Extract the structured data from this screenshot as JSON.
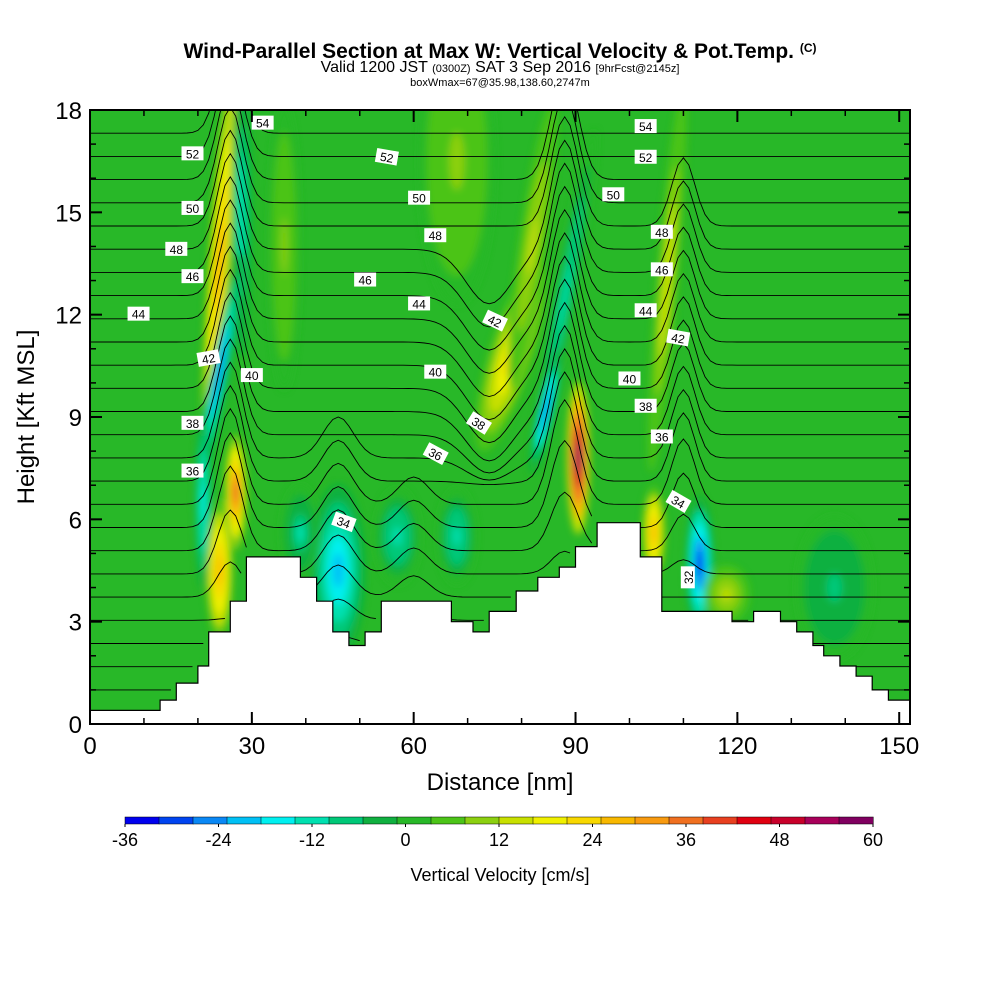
{
  "chart_data": {
    "type": "heatmap",
    "title": "Wind-Parallel Section at Max W: Vertical Velocity & Pot.Temp.",
    "title_mark": "(C)",
    "subtitle_main": "Valid 1200 JST",
    "subtitle_z": "(0300Z)",
    "subtitle_date": "SAT 3 Sep 2016",
    "subtitle_fcst": "[9hrFcst@2145z]",
    "subtitle2": "boxWmax=67@35.98,138.60,2747m",
    "xlabel": "Distance [nm]",
    "ylabel": "Height [Kft MSL]",
    "xlim": [
      0,
      152
    ],
    "ylim": [
      0,
      18
    ],
    "x_ticks": [
      "0",
      "30",
      "60",
      "90",
      "120",
      "150"
    ],
    "y_ticks": [
      "0",
      "3",
      "6",
      "9",
      "12",
      "15",
      "18"
    ],
    "colorbar_label": "Vertical Velocity [cm/s]",
    "colorbar_ticks": [
      "-36",
      "-24",
      "-12",
      "0",
      "12",
      "24",
      "36",
      "48",
      "60"
    ],
    "colorbar_range": [
      -36,
      60
    ],
    "colorbar_colors": [
      "#0000ee",
      "#0044f0",
      "#0a88f5",
      "#00c0f5",
      "#00f0f0",
      "#00e0b0",
      "#00c878",
      "#10b040",
      "#28b828",
      "#4cc418",
      "#8cd010",
      "#c8e000",
      "#f0f000",
      "#f8d800",
      "#f8b800",
      "#f89a10",
      "#f07020",
      "#e84020",
      "#e00010",
      "#c8002a",
      "#a8005a",
      "#800060"
    ],
    "terrain_ft": [
      [
        0,
        400
      ],
      [
        13,
        400
      ],
      [
        13,
        700
      ],
      [
        16,
        700
      ],
      [
        16,
        1200
      ],
      [
        20,
        1200
      ],
      [
        20,
        1700
      ],
      [
        22,
        1700
      ],
      [
        22,
        2700
      ],
      [
        26,
        2700
      ],
      [
        26,
        3600
      ],
      [
        29,
        3600
      ],
      [
        29,
        4900
      ],
      [
        39,
        4900
      ],
      [
        39,
        4300
      ],
      [
        42,
        4300
      ],
      [
        42,
        3600
      ],
      [
        45,
        3600
      ],
      [
        45,
        2700
      ],
      [
        48,
        2700
      ],
      [
        48,
        2300
      ],
      [
        51,
        2300
      ],
      [
        51,
        2700
      ],
      [
        54,
        2700
      ],
      [
        54,
        3600
      ],
      [
        67,
        3600
      ],
      [
        67,
        3000
      ],
      [
        71,
        3000
      ],
      [
        71,
        2700
      ],
      [
        74,
        2700
      ],
      [
        74,
        3300
      ],
      [
        79,
        3300
      ],
      [
        79,
        3900
      ],
      [
        83,
        3900
      ],
      [
        83,
        4300
      ],
      [
        87,
        4300
      ],
      [
        87,
        4600
      ],
      [
        90,
        4600
      ],
      [
        90,
        5200
      ],
      [
        94,
        5200
      ],
      [
        94,
        5900
      ],
      [
        102,
        5900
      ],
      [
        102,
        4900
      ],
      [
        106,
        4900
      ],
      [
        106,
        3300
      ],
      [
        119,
        3300
      ],
      [
        119,
        3000
      ],
      [
        123,
        3000
      ],
      [
        123,
        3300
      ],
      [
        128,
        3300
      ],
      [
        128,
        3000
      ],
      [
        131,
        3000
      ],
      [
        131,
        2700
      ],
      [
        134,
        2700
      ],
      [
        134,
        2300
      ],
      [
        136,
        2300
      ],
      [
        136,
        2000
      ],
      [
        139,
        2000
      ],
      [
        139,
        1700
      ],
      [
        142,
        1700
      ],
      [
        142,
        1400
      ],
      [
        145,
        1400
      ],
      [
        145,
        1000
      ],
      [
        148,
        1000
      ],
      [
        148,
        700
      ],
      [
        152,
        700
      ]
    ],
    "w_background_cm_s": 2,
    "w_cells": [
      {
        "x": 24,
        "y": 13.5,
        "sx": 1.5,
        "sy": 4.5,
        "slant": -0.1,
        "w": 30
      },
      {
        "x": 27,
        "y": 6.8,
        "sx": 1.4,
        "sy": 1.2,
        "slant": 0,
        "w": 40
      },
      {
        "x": 24,
        "y": 4.5,
        "sx": 1.8,
        "sy": 1.5,
        "slant": 0,
        "w": 28
      },
      {
        "x": 28,
        "y": 15,
        "sx": 1.3,
        "sy": 3,
        "slant": 0,
        "w": -14
      },
      {
        "x": 24,
        "y": 10.3,
        "sx": 1.2,
        "sy": 2.5,
        "slant": -0.25,
        "w": -24
      },
      {
        "x": 21,
        "y": 6.5,
        "sx": 1.0,
        "sy": 1.8,
        "slant": 0,
        "w": -18
      },
      {
        "x": 46,
        "y": 4.5,
        "sx": 3.5,
        "sy": 1.8,
        "slant": 0,
        "w": -20
      },
      {
        "x": 39,
        "y": 5.6,
        "sx": 2.5,
        "sy": 1.0,
        "slant": 0,
        "w": -10
      },
      {
        "x": 57,
        "y": 5.5,
        "sx": 3.0,
        "sy": 1.0,
        "slant": 0,
        "w": -12
      },
      {
        "x": 68,
        "y": 5.5,
        "sx": 2.5,
        "sy": 1.0,
        "slant": 0,
        "w": -12
      },
      {
        "x": 78,
        "y": 10.8,
        "sx": 3.0,
        "sy": 2.0,
        "slant": -0.4,
        "w": 22
      },
      {
        "x": 82,
        "y": 14,
        "sx": 1.8,
        "sy": 3.0,
        "slant": -0.2,
        "w": 14
      },
      {
        "x": 88,
        "y": 12.5,
        "sx": 1.4,
        "sy": 3.5,
        "slant": -0.25,
        "w": -12
      },
      {
        "x": 84.5,
        "y": 9.2,
        "sx": 1.1,
        "sy": 1.3,
        "slant": -0.3,
        "w": -26
      },
      {
        "x": 90.5,
        "y": 7.8,
        "sx": 1.5,
        "sy": 1.6,
        "slant": 0,
        "w": 62
      },
      {
        "x": 107,
        "y": 13,
        "sx": 1.4,
        "sy": 4.0,
        "slant": -0.12,
        "w": 16
      },
      {
        "x": 104.5,
        "y": 5.6,
        "sx": 1.5,
        "sy": 1.0,
        "slant": 0,
        "w": 28
      },
      {
        "x": 113,
        "y": 4.7,
        "sx": 1.8,
        "sy": 1.4,
        "slant": 0,
        "w": -32
      },
      {
        "x": 118,
        "y": 3.8,
        "sx": 3.0,
        "sy": 0.6,
        "slant": 0,
        "w": 14
      },
      {
        "x": 138,
        "y": 4,
        "sx": 5.0,
        "sy": 1.5,
        "slant": 0,
        "w": -6
      },
      {
        "x": 68,
        "y": 16.5,
        "sx": 5.0,
        "sy": 3.0,
        "slant": 0,
        "w": 8
      },
      {
        "x": 36,
        "y": 14,
        "sx": 2.0,
        "sy": 3.0,
        "slant": 0,
        "w": 8
      }
    ],
    "theta_contours_K": [
      30,
      31,
      32,
      33,
      34,
      35,
      36,
      37,
      38,
      39,
      40,
      41,
      42,
      43,
      44,
      45,
      46,
      47,
      48,
      49,
      50,
      51,
      52,
      53,
      54,
      55,
      56
    ],
    "contour_labels": [
      {
        "text": "54",
        "x": 32,
        "y": 17.6,
        "angle": 0
      },
      {
        "text": "52",
        "x": 19,
        "y": 16.7,
        "angle": 0
      },
      {
        "text": "50",
        "x": 19,
        "y": 15.1,
        "angle": 0
      },
      {
        "text": "48",
        "x": 16,
        "y": 13.9,
        "angle": 0
      },
      {
        "text": "46",
        "x": 19,
        "y": 13.1,
        "angle": 0
      },
      {
        "text": "44",
        "x": 9,
        "y": 12.0,
        "angle": 0
      },
      {
        "text": "42",
        "x": 22,
        "y": 10.7,
        "angle": -10
      },
      {
        "text": "40",
        "x": 30,
        "y": 10.2,
        "angle": 0
      },
      {
        "text": "38",
        "x": 19,
        "y": 8.8,
        "angle": 0
      },
      {
        "text": "36",
        "x": 19,
        "y": 7.4,
        "angle": 0
      },
      {
        "text": "34",
        "x": 47,
        "y": 5.9,
        "angle": 20
      },
      {
        "text": "52",
        "x": 55,
        "y": 16.6,
        "angle": 10
      },
      {
        "text": "50",
        "x": 61,
        "y": 15.4,
        "angle": 0
      },
      {
        "text": "48",
        "x": 64,
        "y": 14.3,
        "angle": 0
      },
      {
        "text": "46",
        "x": 51,
        "y": 13.0,
        "angle": 0
      },
      {
        "text": "44",
        "x": 61,
        "y": 12.3,
        "angle": 0
      },
      {
        "text": "42",
        "x": 75,
        "y": 11.8,
        "angle": 25
      },
      {
        "text": "40",
        "x": 64,
        "y": 10.3,
        "angle": 0
      },
      {
        "text": "38",
        "x": 72,
        "y": 8.8,
        "angle": 32
      },
      {
        "text": "36",
        "x": 64,
        "y": 7.9,
        "angle": 28
      },
      {
        "text": "54",
        "x": 103,
        "y": 17.5,
        "angle": 0
      },
      {
        "text": "52",
        "x": 103,
        "y": 16.6,
        "angle": 0
      },
      {
        "text": "50",
        "x": 97,
        "y": 15.5,
        "angle": 0
      },
      {
        "text": "48",
        "x": 106,
        "y": 14.4,
        "angle": 0
      },
      {
        "text": "46",
        "x": 106,
        "y": 13.3,
        "angle": 0
      },
      {
        "text": "44",
        "x": 103,
        "y": 12.1,
        "angle": 0
      },
      {
        "text": "42",
        "x": 109,
        "y": 11.3,
        "angle": 10
      },
      {
        "text": "40",
        "x": 100,
        "y": 10.1,
        "angle": 0
      },
      {
        "text": "38",
        "x": 103,
        "y": 9.3,
        "angle": 0
      },
      {
        "text": "36",
        "x": 106,
        "y": 8.4,
        "angle": 0
      },
      {
        "text": "34",
        "x": 109,
        "y": 6.5,
        "angle": 30
      },
      {
        "text": "32",
        "x": 111,
        "y": 4.3,
        "angle": -90
      }
    ]
  }
}
